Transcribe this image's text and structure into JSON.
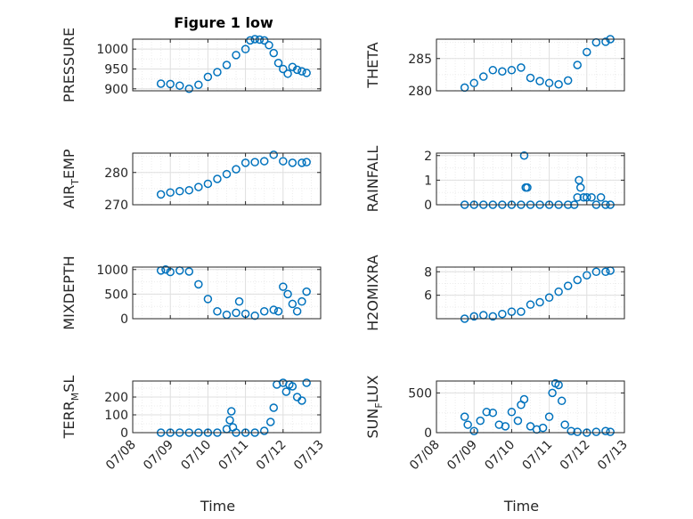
{
  "figure": {
    "title": "Figure 1 low",
    "background": "#ffffff",
    "marker_color": "#0072BD",
    "marker": "circle"
  },
  "chart_data": [
    {
      "type": "scatter",
      "id": "pressure",
      "title": "Figure 1 low",
      "ylabel": "PRESSURE",
      "xlabel": "",
      "x_ticklabels": [],
      "ylim": [
        895,
        1025
      ],
      "yticks": [
        900,
        950,
        1000
      ],
      "grid": true,
      "series": [
        {
          "x": [
            "07/08 18:00",
            "07/09 00:00",
            "07/09 06:00",
            "07/09 12:00",
            "07/09 18:00",
            "07/10 00:00",
            "07/10 06:00",
            "07/10 12:00",
            "07/10 18:00",
            "07/11 00:00",
            "07/11 03:00",
            "07/11 06:00",
            "07/11 09:00",
            "07/11 12:00",
            "07/11 15:00",
            "07/11 18:00",
            "07/11 21:00",
            "07/12 00:00",
            "07/12 03:00",
            "07/12 06:00",
            "07/12 09:00",
            "07/12 12:00",
            "07/12 15:00"
          ],
          "y": [
            913,
            912,
            908,
            900,
            910,
            930,
            942,
            960,
            985,
            1000,
            1022,
            1025,
            1024,
            1022,
            1010,
            990,
            965,
            950,
            938,
            955,
            948,
            944,
            940
          ]
        }
      ]
    },
    {
      "type": "scatter",
      "id": "theta",
      "ylabel": "THETA",
      "xlabel": "",
      "x_ticklabels": [],
      "ylim": [
        280,
        288
      ],
      "yticks": [
        280,
        285
      ],
      "grid": true,
      "series": [
        {
          "x": [
            "07/08 18:00",
            "07/09 00:00",
            "07/09 06:00",
            "07/09 12:00",
            "07/09 18:00",
            "07/10 00:00",
            "07/10 06:00",
            "07/10 12:00",
            "07/10 18:00",
            "07/11 00:00",
            "07/11 06:00",
            "07/11 12:00",
            "07/11 18:00",
            "07/12 00:00",
            "07/12 06:00",
            "07/12 12:00",
            "07/12 15:00"
          ],
          "y": [
            280.5,
            281.2,
            282.2,
            283.2,
            283.0,
            283.2,
            283.6,
            282.0,
            281.5,
            281.2,
            281.0,
            281.6,
            284.0,
            286.0,
            287.5,
            287.6,
            288.0
          ]
        }
      ]
    },
    {
      "type": "scatter",
      "id": "air-temp",
      "ylabel": "AIR_TEMP",
      "ylabel_display": {
        "main": "AIR",
        "sub": "T",
        "rest": "EMP"
      },
      "xlabel": "",
      "x_ticklabels": [],
      "ylim": [
        270,
        286
      ],
      "yticks": [
        270,
        280
      ],
      "grid": true,
      "series": [
        {
          "x": [
            "07/08 18:00",
            "07/09 00:00",
            "07/09 06:00",
            "07/09 12:00",
            "07/09 18:00",
            "07/10 00:00",
            "07/10 06:00",
            "07/10 12:00",
            "07/10 18:00",
            "07/11 00:00",
            "07/11 06:00",
            "07/11 12:00",
            "07/11 18:00",
            "07/12 00:00",
            "07/12 06:00",
            "07/12 12:00",
            "07/12 15:00"
          ],
          "y": [
            273.2,
            273.8,
            274.2,
            274.5,
            275.5,
            276.5,
            278.0,
            279.5,
            281.0,
            283.0,
            283.2,
            283.5,
            285.5,
            283.5,
            283.0,
            283.0,
            283.2
          ]
        }
      ]
    },
    {
      "type": "scatter",
      "id": "rainfall",
      "ylabel": "RAINFALL",
      "xlabel": "",
      "x_ticklabels": [],
      "ylim": [
        0,
        2.1
      ],
      "yticks": [
        0,
        1,
        2
      ],
      "grid": true,
      "series": [
        {
          "x": [
            "07/08 18:00",
            "07/09 00:00",
            "07/09 06:00",
            "07/09 12:00",
            "07/09 18:00",
            "07/10 00:00",
            "07/10 06:00",
            "07/10 08:00",
            "07/10 09:00",
            "07/10 10:00",
            "07/10 12:00",
            "07/10 18:00",
            "07/11 00:00",
            "07/11 06:00",
            "07/11 12:00",
            "07/11 16:00",
            "07/11 18:00",
            "07/11 19:00",
            "07/11 20:00",
            "07/11 22:00",
            "07/12 00:00",
            "07/12 03:00",
            "07/12 06:00",
            "07/12 09:00",
            "07/12 12:00",
            "07/12 15:00"
          ],
          "y": [
            0,
            0,
            0,
            0,
            0,
            0,
            0,
            2.0,
            0.7,
            0.7,
            0,
            0,
            0,
            0,
            0,
            0,
            0.3,
            1.0,
            0.7,
            0.3,
            0.3,
            0.3,
            0,
            0.3,
            0,
            0
          ]
        }
      ]
    },
    {
      "type": "scatter",
      "id": "mixdepth",
      "ylabel": "MIXDEPTH",
      "xlabel": "",
      "x_ticklabels": [],
      "ylim": [
        0,
        1050
      ],
      "yticks": [
        0,
        500,
        1000
      ],
      "grid": true,
      "series": [
        {
          "x": [
            "07/08 18:00",
            "07/08 21:00",
            "07/09 00:00",
            "07/09 06:00",
            "07/09 12:00",
            "07/09 18:00",
            "07/10 00:00",
            "07/10 06:00",
            "07/10 12:00",
            "07/10 18:00",
            "07/10 20:00",
            "07/11 00:00",
            "07/11 06:00",
            "07/11 12:00",
            "07/11 18:00",
            "07/11 21:00",
            "07/12 00:00",
            "07/12 03:00",
            "07/12 06:00",
            "07/12 09:00",
            "07/12 12:00",
            "07/12 15:00"
          ],
          "y": [
            980,
            1000,
            950,
            980,
            960,
            700,
            400,
            150,
            80,
            120,
            350,
            100,
            60,
            150,
            180,
            150,
            650,
            500,
            300,
            150,
            350,
            550
          ]
        }
      ]
    },
    {
      "type": "scatter",
      "id": "h2omixra",
      "ylabel": "H2OMIXRA",
      "xlabel": "",
      "x_ticklabels": [],
      "ylim": [
        4,
        8.4
      ],
      "yticks": [
        6,
        8
      ],
      "grid": true,
      "series": [
        {
          "x": [
            "07/08 18:00",
            "07/09 00:00",
            "07/09 06:00",
            "07/09 12:00",
            "07/09 18:00",
            "07/10 00:00",
            "07/10 06:00",
            "07/10 12:00",
            "07/10 18:00",
            "07/11 00:00",
            "07/11 06:00",
            "07/11 12:00",
            "07/11 18:00",
            "07/12 00:00",
            "07/12 06:00",
            "07/12 12:00",
            "07/12 15:00"
          ],
          "y": [
            4.0,
            4.2,
            4.3,
            4.2,
            4.4,
            4.6,
            4.6,
            5.2,
            5.4,
            5.8,
            6.3,
            6.8,
            7.3,
            7.7,
            8.0,
            8.0,
            8.1
          ]
        }
      ]
    },
    {
      "type": "scatter",
      "id": "terr-msl",
      "ylabel": "TERR_MSL",
      "ylabel_display": {
        "main": "TERR",
        "sub": "M",
        "rest": "SL"
      },
      "xlabel": "Time",
      "x_ticklabels": [
        "07/08",
        "07/09",
        "07/10",
        "07/11",
        "07/12",
        "07/13"
      ],
      "ylim": [
        0,
        290
      ],
      "yticks": [
        0,
        100,
        200
      ],
      "grid": true,
      "series": [
        {
          "x": [
            "07/08 18:00",
            "07/09 00:00",
            "07/09 06:00",
            "07/09 12:00",
            "07/09 18:00",
            "07/10 00:00",
            "07/10 06:00",
            "07/10 12:00",
            "07/10 14:00",
            "07/10 15:00",
            "07/10 16:00",
            "07/10 18:00",
            "07/11 00:00",
            "07/11 06:00",
            "07/11 12:00",
            "07/11 16:00",
            "07/11 18:00",
            "07/11 20:00",
            "07/12 00:00",
            "07/12 02:00",
            "07/12 04:00",
            "07/12 06:00",
            "07/12 09:00",
            "07/12 12:00",
            "07/12 15:00"
          ],
          "y": [
            0,
            0,
            0,
            0,
            0,
            0,
            0,
            20,
            70,
            120,
            30,
            0,
            0,
            0,
            10,
            60,
            140,
            270,
            280,
            230,
            270,
            260,
            200,
            180,
            280
          ]
        }
      ]
    },
    {
      "type": "scatter",
      "id": "sun-flux",
      "ylabel": "SUN_FLUX",
      "ylabel_display": {
        "main": "SUN",
        "sub": "F",
        "rest": "LUX"
      },
      "xlabel": "Time",
      "x_ticklabels": [
        "07/08",
        "07/09",
        "07/10",
        "07/11",
        "07/12",
        "07/13"
      ],
      "ylim": [
        0,
        650
      ],
      "yticks": [
        0,
        500
      ],
      "grid": true,
      "series": [
        {
          "x": [
            "07/08 18:00",
            "07/08 20:00",
            "07/09 00:00",
            "07/09 04:00",
            "07/09 08:00",
            "07/09 12:00",
            "07/09 16:00",
            "07/09 20:00",
            "07/10 00:00",
            "07/10 04:00",
            "07/10 06:00",
            "07/10 08:00",
            "07/10 12:00",
            "07/10 16:00",
            "07/10 20:00",
            "07/11 00:00",
            "07/11 02:00",
            "07/11 04:00",
            "07/11 06:00",
            "07/11 08:00",
            "07/11 10:00",
            "07/11 14:00",
            "07/11 18:00",
            "07/12 00:00",
            "07/12 06:00",
            "07/12 12:00",
            "07/12 15:00"
          ],
          "y": [
            200,
            100,
            20,
            150,
            260,
            250,
            100,
            80,
            260,
            150,
            350,
            420,
            80,
            40,
            60,
            200,
            500,
            620,
            600,
            400,
            100,
            20,
            10,
            0,
            10,
            20,
            10
          ]
        }
      ]
    }
  ]
}
